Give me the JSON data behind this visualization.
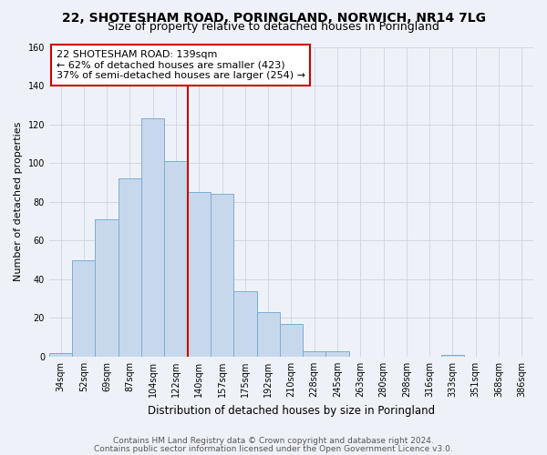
{
  "title": "22, SHOTESHAM ROAD, PORINGLAND, NORWICH, NR14 7LG",
  "subtitle": "Size of property relative to detached houses in Poringland",
  "xlabel": "Distribution of detached houses by size in Poringland",
  "ylabel": "Number of detached properties",
  "bar_labels": [
    "34sqm",
    "52sqm",
    "69sqm",
    "87sqm",
    "104sqm",
    "122sqm",
    "140sqm",
    "157sqm",
    "175sqm",
    "192sqm",
    "210sqm",
    "228sqm",
    "245sqm",
    "263sqm",
    "280sqm",
    "298sqm",
    "316sqm",
    "333sqm",
    "351sqm",
    "368sqm",
    "386sqm"
  ],
  "bar_values": [
    2,
    50,
    71,
    92,
    123,
    101,
    85,
    84,
    34,
    23,
    17,
    3,
    3,
    0,
    0,
    0,
    0,
    1,
    0,
    0,
    0
  ],
  "bar_color": "#c8d8ec",
  "bar_edge_color": "#7aadd4",
  "vline_x_idx": 6,
  "vline_color": "#cc0000",
  "ylim": [
    0,
    160
  ],
  "yticks": [
    0,
    20,
    40,
    60,
    80,
    100,
    120,
    140,
    160
  ],
  "grid_color": "#d0d8e4",
  "bg_color": "#eef2f8",
  "annotation_title": "22 SHOTESHAM ROAD: 139sqm",
  "annotation_line1": "← 62% of detached houses are smaller (423)",
  "annotation_line2": "37% of semi-detached houses are larger (254) →",
  "annotation_box_facecolor": "#ffffff",
  "annotation_box_edgecolor": "#cc0000",
  "footer1": "Contains HM Land Registry data © Crown copyright and database right 2024.",
  "footer2": "Contains public sector information licensed under the Open Government Licence v3.0.",
  "title_fontsize": 10,
  "subtitle_fontsize": 9,
  "ylabel_fontsize": 8,
  "xlabel_fontsize": 8.5,
  "tick_fontsize": 7,
  "annotation_fontsize": 8,
  "footer_fontsize": 6.5
}
